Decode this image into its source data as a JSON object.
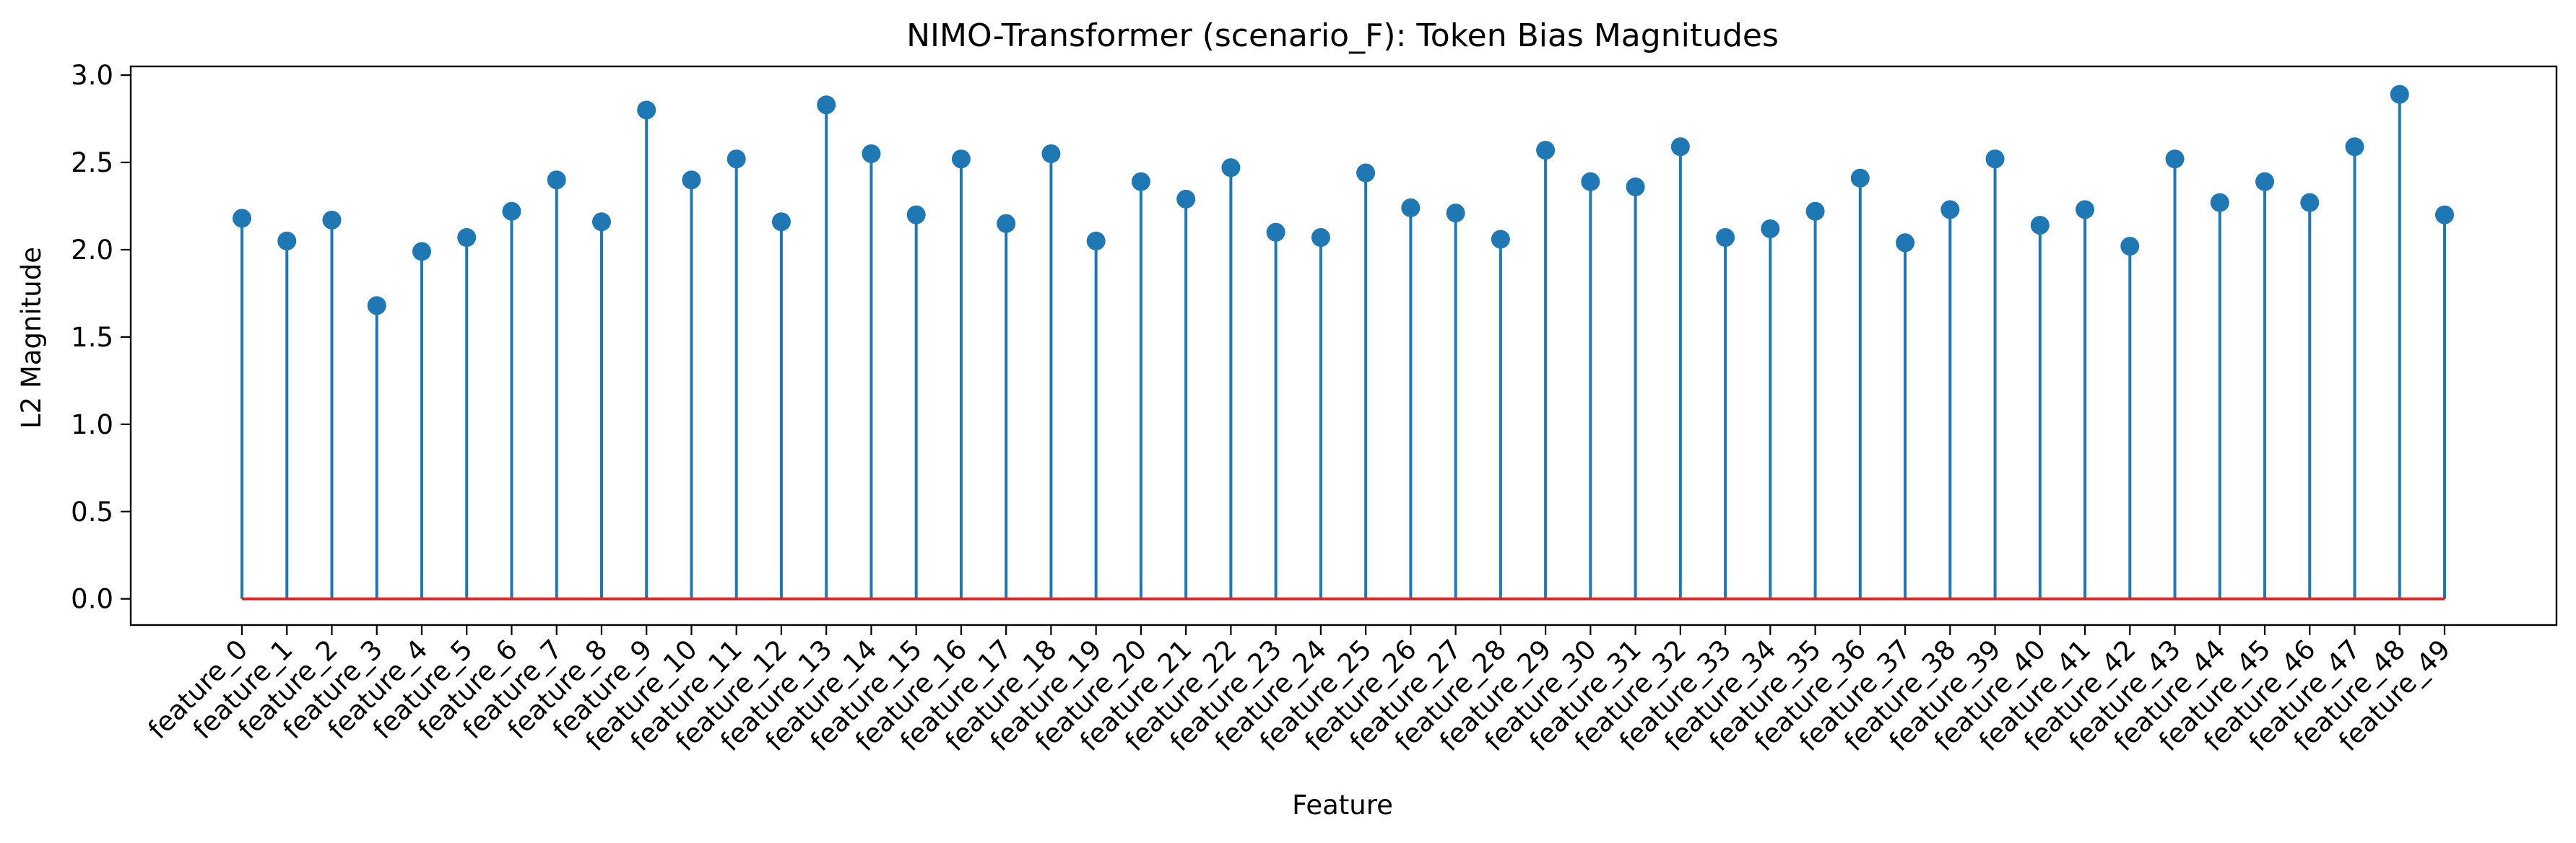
{
  "chart_data": {
    "type": "stem",
    "title": "NIMO-Transformer (scenario_F): Token Bias Magnitudes",
    "xlabel": "Feature",
    "ylabel": "L2 Magnitude",
    "ylim": [
      -0.15,
      3.05
    ],
    "yticks": [
      0.0,
      0.5,
      1.0,
      1.5,
      2.0,
      2.5,
      3.0
    ],
    "ytick_labels": [
      "0.0",
      "0.5",
      "1.0",
      "1.5",
      "2.0",
      "2.5",
      "3.0"
    ],
    "grid": false,
    "legend": "none",
    "colors": {
      "stem": "#1f77b4",
      "marker": "#1f77b4",
      "baseline": "#d62728"
    },
    "categories": [
      "feature_0",
      "feature_1",
      "feature_2",
      "feature_3",
      "feature_4",
      "feature_5",
      "feature_6",
      "feature_7",
      "feature_8",
      "feature_9",
      "feature_10",
      "feature_11",
      "feature_12",
      "feature_13",
      "feature_14",
      "feature_15",
      "feature_16",
      "feature_17",
      "feature_18",
      "feature_19",
      "feature_20",
      "feature_21",
      "feature_22",
      "feature_23",
      "feature_24",
      "feature_25",
      "feature_26",
      "feature_27",
      "feature_28",
      "feature_29",
      "feature_30",
      "feature_31",
      "feature_32",
      "feature_33",
      "feature_34",
      "feature_35",
      "feature_36",
      "feature_37",
      "feature_38",
      "feature_39",
      "feature_40",
      "feature_41",
      "feature_42",
      "feature_43",
      "feature_44",
      "feature_45",
      "feature_46",
      "feature_47",
      "feature_48",
      "feature_49"
    ],
    "values": [
      2.18,
      2.05,
      2.17,
      1.68,
      1.99,
      2.07,
      2.22,
      2.4,
      2.16,
      2.8,
      2.4,
      2.52,
      2.16,
      2.83,
      2.55,
      2.2,
      2.52,
      2.15,
      2.55,
      2.05,
      2.39,
      2.29,
      2.47,
      2.1,
      2.07,
      2.44,
      2.24,
      2.21,
      2.06,
      2.57,
      2.39,
      2.36,
      2.59,
      2.07,
      2.12,
      2.22,
      2.41,
      2.04,
      2.23,
      2.52,
      2.14,
      2.23,
      2.02,
      2.52,
      2.27,
      2.39,
      2.27,
      2.59,
      2.89,
      2.2
    ]
  }
}
